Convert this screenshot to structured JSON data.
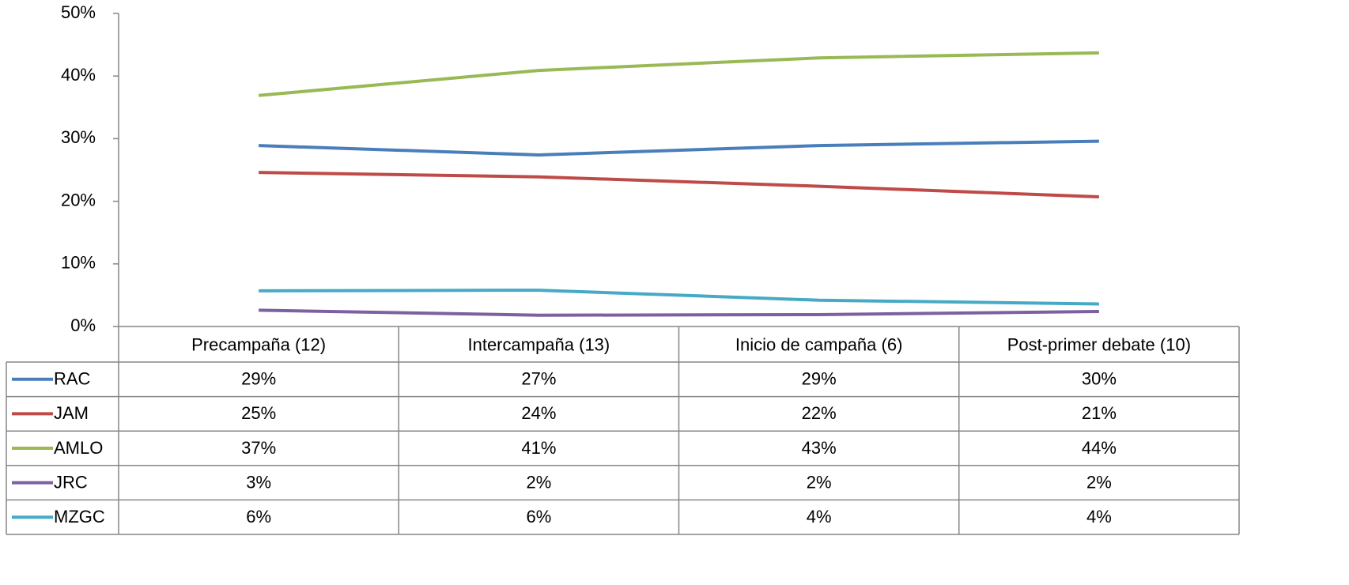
{
  "chart_data": {
    "type": "line",
    "categories": [
      "Precampaña (12)",
      "Intercampaña (13)",
      "Inicio de campaña (6)",
      "Post-primer debate (10)"
    ],
    "series": [
      {
        "name": "RAC",
        "color": "#4a7ebb",
        "values": [
          28.9,
          27.4,
          28.9,
          29.6
        ],
        "value_labels": [
          "29%",
          "27%",
          "29%",
          "30%"
        ]
      },
      {
        "name": "JAM",
        "color": "#be4b48",
        "values": [
          24.6,
          23.9,
          22.4,
          20.7
        ],
        "value_labels": [
          "25%",
          "24%",
          "22%",
          "21%"
        ]
      },
      {
        "name": "AMLO",
        "color": "#98b954",
        "values": [
          36.9,
          40.9,
          42.9,
          43.7
        ],
        "value_labels": [
          "37%",
          "41%",
          "43%",
          "44%"
        ]
      },
      {
        "name": "JRC",
        "color": "#7d60a0",
        "values": [
          2.6,
          1.8,
          1.9,
          2.4
        ],
        "value_labels": [
          "3%",
          "2%",
          "2%",
          "2%"
        ]
      },
      {
        "name": "MZGC",
        "color": "#46aac5",
        "values": [
          5.7,
          5.8,
          4.2,
          3.6
        ],
        "value_labels": [
          "6%",
          "6%",
          "4%",
          "4%"
        ]
      }
    ],
    "ylim": [
      0,
      50
    ],
    "yticks": [
      {
        "value": 0,
        "label": "0%"
      },
      {
        "value": 10,
        "label": "10%"
      },
      {
        "value": 20,
        "label": "20%"
      },
      {
        "value": 30,
        "label": "30%"
      },
      {
        "value": 40,
        "label": "40%"
      },
      {
        "value": 50,
        "label": "50%"
      }
    ],
    "grid": false
  }
}
